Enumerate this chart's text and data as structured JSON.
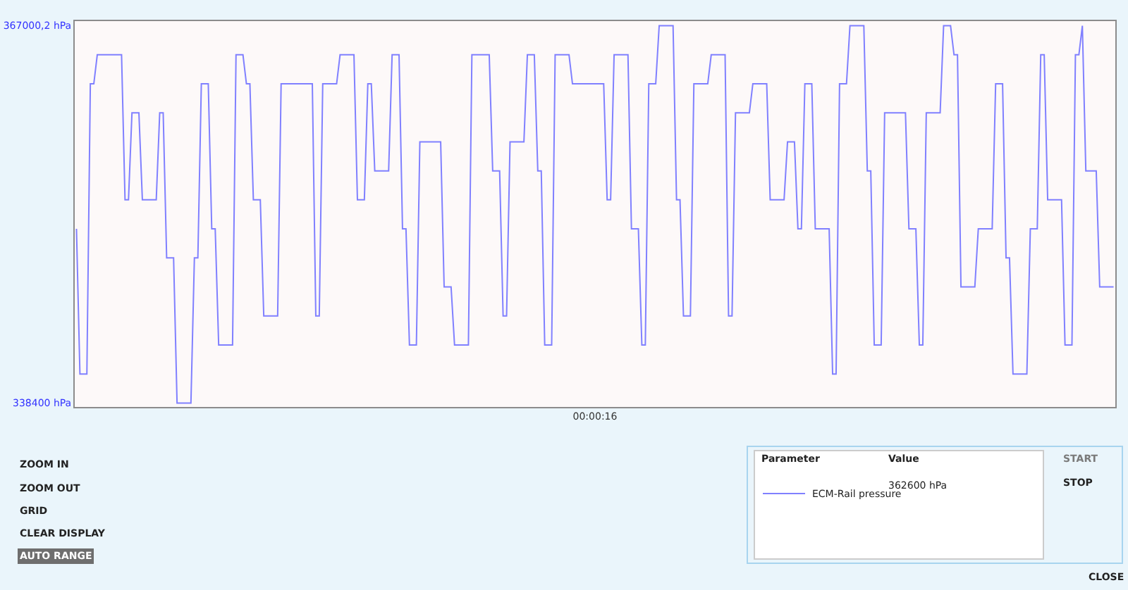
{
  "chart_data": {
    "type": "line",
    "xlabel": "00:00:16",
    "categories": [
      null,
      null,
      null,
      null,
      null,
      null,
      null,
      null,
      null,
      null,
      null,
      null,
      null,
      null,
      null,
      null,
      null,
      null,
      null,
      null,
      null,
      null,
      null,
      null,
      null,
      null,
      null,
      null,
      null,
      null,
      null,
      null,
      null,
      null,
      null,
      null,
      null,
      null,
      null,
      null,
      null,
      null,
      null,
      null,
      null,
      null,
      null,
      null,
      null,
      null,
      null,
      null,
      null,
      null,
      null,
      null,
      null,
      null,
      null,
      null,
      null,
      null,
      null,
      null,
      null,
      null,
      null,
      null,
      null,
      null,
      null,
      null,
      null,
      null,
      null,
      null,
      null,
      null,
      null,
      null,
      null,
      null,
      null,
      null,
      null,
      null,
      null,
      null,
      null,
      null,
      null,
      null,
      null,
      null,
      null,
      null,
      null,
      null,
      null,
      null,
      null,
      null,
      null,
      null,
      null,
      null,
      null,
      null,
      null,
      null,
      null,
      null,
      null,
      null,
      null,
      null,
      null,
      null,
      null,
      null,
      null,
      null,
      null,
      null,
      null,
      null,
      null,
      null,
      null,
      null,
      null,
      null,
      null,
      null,
      null,
      null,
      null,
      null,
      null,
      null,
      null,
      null,
      null,
      null,
      null,
      null,
      null,
      null,
      null,
      null,
      null,
      null,
      null,
      null,
      null,
      null,
      null,
      null,
      null,
      null,
      null,
      null,
      null,
      null,
      null,
      null,
      null,
      null,
      null,
      null,
      null,
      null,
      null,
      null,
      null,
      null,
      null,
      null,
      null,
      null,
      null,
      null,
      null,
      null,
      null,
      null,
      null,
      null,
      null,
      null,
      null,
      null,
      null,
      null,
      null,
      null,
      null,
      null,
      null,
      null,
      null,
      null,
      null,
      null,
      null,
      null,
      null,
      null,
      null,
      null,
      null,
      null,
      null,
      null,
      null,
      null,
      null,
      null,
      null,
      null,
      null,
      null,
      null,
      null,
      null,
      null,
      null,
      null,
      null,
      null,
      null,
      null,
      null,
      null,
      null,
      null,
      null,
      null,
      null,
      null,
      null,
      null,
      null,
      null,
      null,
      null,
      null,
      null,
      null,
      null,
      null,
      null,
      null,
      null,
      null,
      null,
      null,
      null,
      null,
      null,
      null,
      null,
      null,
      null,
      null,
      null,
      null,
      null,
      null,
      null,
      null,
      null,
      null,
      null,
      null,
      null,
      null,
      null,
      null,
      null,
      null,
      null,
      null,
      null,
      null,
      null,
      null,
      null,
      null,
      null,
      null,
      null,
      null,
      null,
      null,
      null,
      null,
      null,
      null,
      null
    ],
    "series": [
      {
        "name": "ECM-Rail pressure",
        "color": "#8080ff",
        "values": [
          351600,
          340600,
          340600,
          340600,
          362600,
          362600,
          364800,
          364800,
          364800,
          364800,
          364800,
          364800,
          364800,
          364800,
          353800,
          353800,
          360400,
          360400,
          360400,
          353800,
          353800,
          353800,
          353800,
          353800,
          360400,
          360400,
          349400,
          349400,
          349400,
          338400,
          338400,
          338400,
          338400,
          338400,
          349400,
          349400,
          362600,
          362600,
          362600,
          351600,
          351600,
          342800,
          342800,
          342800,
          342800,
          342800,
          364800,
          364800,
          364800,
          362600,
          362600,
          353800,
          353800,
          353800,
          345000,
          345000,
          345000,
          345000,
          345000,
          362600,
          362600,
          362600,
          362600,
          362600,
          362600,
          362600,
          362600,
          362600,
          362600,
          345000,
          345000,
          362600,
          362600,
          362600,
          362600,
          362600,
          364800,
          364800,
          364800,
          364800,
          364800,
          353800,
          353800,
          353800,
          362600,
          362600,
          356000,
          356000,
          356000,
          356000,
          356000,
          364800,
          364800,
          364800,
          351600,
          351600,
          342800,
          342800,
          342800,
          358200,
          358200,
          358200,
          358200,
          358200,
          358200,
          358200,
          347200,
          347200,
          347200,
          342800,
          342800,
          342800,
          342800,
          342800,
          364800,
          364800,
          364800,
          364800,
          364800,
          364800,
          356000,
          356000,
          356000,
          345000,
          345000,
          358200,
          358200,
          358200,
          358200,
          358200,
          364800,
          364800,
          364800,
          356000,
          356000,
          342800,
          342800,
          342800,
          364800,
          364800,
          364800,
          364800,
          364800,
          362600,
          362600,
          362600,
          362600,
          362600,
          362600,
          362600,
          362600,
          362600,
          362600,
          353800,
          353800,
          364800,
          364800,
          364800,
          364800,
          364800,
          351600,
          351600,
          351600,
          342800,
          342800,
          362600,
          362600,
          362600,
          367000,
          367000,
          367000,
          367000,
          367000,
          353800,
          353800,
          345000,
          345000,
          345000,
          362600,
          362600,
          362600,
          362600,
          362600,
          364800,
          364800,
          364800,
          364800,
          364800,
          345000,
          345000,
          360400,
          360400,
          360400,
          360400,
          360400,
          362600,
          362600,
          362600,
          362600,
          362600,
          353800,
          353800,
          353800,
          353800,
          353800,
          358200,
          358200,
          358200,
          351600,
          351600,
          362600,
          362600,
          362600,
          351600,
          351600,
          351600,
          351600,
          351600,
          340600,
          340600,
          362600,
          362600,
          362600,
          367000,
          367000,
          367000,
          367000,
          367000,
          356000,
          356000,
          342800,
          342800,
          342800,
          360400,
          360400,
          360400,
          360400,
          360400,
          360400,
          360400,
          351600,
          351600,
          351600,
          342800,
          342800,
          360400,
          360400,
          360400,
          360400,
          360400,
          367000,
          367000,
          367000,
          364800,
          364800,
          347200,
          347200,
          347200,
          347200,
          347200,
          351600,
          351600,
          351600,
          351600,
          351600,
          362600,
          362600,
          362600,
          349400,
          349400,
          340600,
          340600,
          340600,
          340600,
          340600,
          351600,
          351600,
          351600,
          364800,
          364800,
          353800,
          353800,
          353800,
          353800,
          353800,
          342800,
          342800,
          342800,
          364800,
          364800,
          367000,
          356000,
          356000,
          356000,
          356000,
          347200,
          347200,
          347200,
          347200,
          347200
        ]
      }
    ],
    "ylim": [
      338100,
      367350
    ],
    "yticks": [
      {
        "value": 338400,
        "label": "338400 hPa"
      },
      {
        "value": 367000.2,
        "label": "367000,2 hPa"
      }
    ],
    "grid": false,
    "legend": "bottom right",
    "annotations": [
      "ZOOM IN",
      "ZOOM OUT",
      "GRID",
      "CLEAR DISPLAY",
      "AUTO RANGE",
      "Parameter",
      "Value",
      "362600 hPa",
      "START",
      "STOP",
      "CLOSE"
    ]
  }
}
